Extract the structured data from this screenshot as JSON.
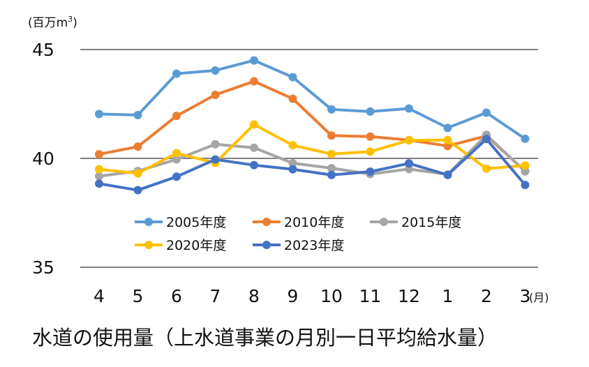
{
  "chart_data": {
    "type": "line",
    "title": "水道の使用量（上水道事業の月別一日平均給水量）",
    "ylabel": "(百万m³)",
    "ylabel_parts": {
      "prefix": "(百万m",
      "sup": "3",
      "suffix": ")"
    },
    "xlabel": "(月)",
    "ylim": [
      35,
      45
    ],
    "yticks": [
      "45",
      "40",
      "35"
    ],
    "ytick_values": [
      45,
      40,
      35
    ],
    "categories": [
      "4",
      "5",
      "6",
      "7",
      "8",
      "9",
      "10",
      "11",
      "12",
      "1",
      "2",
      "3"
    ],
    "grid": true,
    "legend_position": "center-inside",
    "series": [
      {
        "name": "2005年度",
        "color": "#5B9BD5",
        "values": [
          42.04,
          41.99,
          43.89,
          44.04,
          44.5,
          43.73,
          42.25,
          42.15,
          42.29,
          41.4,
          42.1,
          40.9
        ]
      },
      {
        "name": "2010年度",
        "color": "#ED7D31",
        "values": [
          40.19,
          40.54,
          41.95,
          42.92,
          43.54,
          42.74,
          41.05,
          41.0,
          40.84,
          40.57,
          41.03,
          39.42
        ]
      },
      {
        "name": "2015年度",
        "color": "#A5A5A5",
        "values": [
          39.18,
          39.42,
          39.95,
          40.65,
          40.49,
          39.78,
          39.55,
          39.28,
          39.51,
          39.26,
          41.08,
          39.4
        ]
      },
      {
        "name": "2020年度",
        "color": "#FFC000",
        "values": [
          39.5,
          39.31,
          40.24,
          39.79,
          41.56,
          40.6,
          40.2,
          40.31,
          40.83,
          40.84,
          39.53,
          39.67
        ]
      },
      {
        "name": "2023年度",
        "color": "#4472C4",
        "values": [
          38.84,
          38.54,
          39.16,
          39.95,
          39.69,
          39.5,
          39.24,
          39.39,
          39.77,
          39.24,
          40.89,
          38.78
        ]
      }
    ]
  }
}
